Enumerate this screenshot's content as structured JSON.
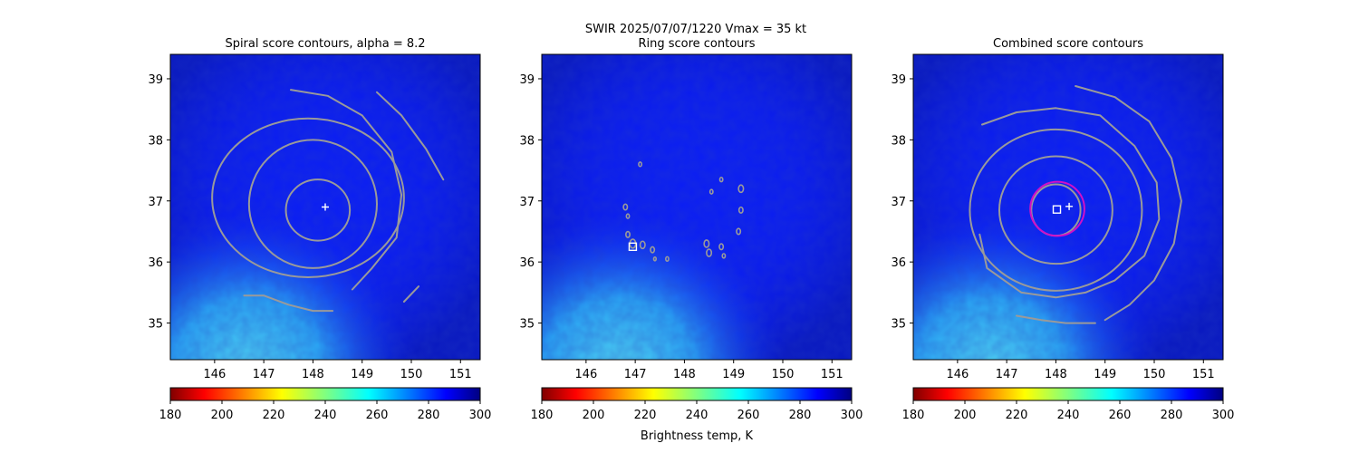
{
  "figure": {
    "suptitle_line1": "SWIR  2025/07/07/1220    Vmax = 35 kt",
    "colorbar_label": "Brightness temp, K"
  },
  "colors": {
    "contour": "#9a9a9a",
    "marker": "#ffffff",
    "ring": "#d010c8",
    "background_cold": "#0a1cf5",
    "background_warm": "#2fb8f0"
  },
  "chart_data": [
    {
      "type": "heatmap",
      "title": "Spiral score contours, alpha =  8.2",
      "xlim": [
        145.1,
        151.4
      ],
      "ylim": [
        34.4,
        39.4
      ],
      "xticks": [
        146,
        147,
        148,
        149,
        150,
        151
      ],
      "yticks": [
        35,
        36,
        37,
        38,
        39
      ],
      "colorbar": {
        "min": 180,
        "max": 300,
        "ticks": [
          180,
          200,
          220,
          240,
          260,
          280,
          300
        ],
        "colormap": "jet_r"
      },
      "marker": {
        "kind": "plus",
        "x": 148.25,
        "y": 36.9
      },
      "contours": [
        {
          "kind": "ellipse",
          "cx": 148.1,
          "cy": 36.85,
          "rx": 0.65,
          "ry": 0.5
        },
        {
          "kind": "ellipse",
          "cx": 148.0,
          "cy": 36.95,
          "rx": 1.3,
          "ry": 1.05
        },
        {
          "kind": "ellipse",
          "cx": 147.9,
          "cy": 37.05,
          "rx": 1.95,
          "ry": 1.3
        },
        {
          "kind": "path",
          "points": [
            [
              147.55,
              38.82
            ],
            [
              148.3,
              38.72
            ],
            [
              149.0,
              38.4
            ],
            [
              149.6,
              37.8
            ],
            [
              149.8,
              37.1
            ],
            [
              149.7,
              36.4
            ],
            [
              149.2,
              35.9
            ],
            [
              148.8,
              35.55
            ]
          ]
        },
        {
          "kind": "path",
          "points": [
            [
              149.3,
              38.78
            ],
            [
              149.8,
              38.4
            ],
            [
              150.3,
              37.85
            ],
            [
              150.65,
              37.35
            ]
          ]
        },
        {
          "kind": "path",
          "points": [
            [
              146.6,
              35.45
            ],
            [
              147.0,
              35.45
            ],
            [
              147.5,
              35.3
            ],
            [
              148.0,
              35.2
            ],
            [
              148.4,
              35.2
            ]
          ]
        },
        {
          "kind": "path",
          "points": [
            [
              149.85,
              35.35
            ],
            [
              150.15,
              35.6
            ]
          ]
        }
      ]
    },
    {
      "type": "heatmap",
      "title": "Ring score contours",
      "xlim": [
        145.1,
        151.4
      ],
      "ylim": [
        34.4,
        39.4
      ],
      "xticks": [
        146,
        147,
        148,
        149,
        150,
        151
      ],
      "yticks": [
        35,
        36,
        37,
        38,
        39
      ],
      "colorbar": {
        "min": 180,
        "max": 300,
        "ticks": [
          180,
          200,
          220,
          240,
          260,
          280,
          300
        ],
        "colormap": "jet_r"
      },
      "marker": {
        "kind": "square",
        "x": 146.95,
        "y": 36.25
      },
      "contours": [
        {
          "kind": "blob",
          "cx": 146.95,
          "cy": 36.3,
          "r": 0.06
        },
        {
          "kind": "blob",
          "cx": 146.85,
          "cy": 36.45,
          "r": 0.04
        },
        {
          "kind": "blob",
          "cx": 147.15,
          "cy": 36.28,
          "r": 0.05
        },
        {
          "kind": "blob",
          "cx": 147.35,
          "cy": 36.2,
          "r": 0.04
        },
        {
          "kind": "blob",
          "cx": 146.8,
          "cy": 36.9,
          "r": 0.04
        },
        {
          "kind": "blob",
          "cx": 146.85,
          "cy": 36.75,
          "r": 0.03
        },
        {
          "kind": "blob",
          "cx": 147.1,
          "cy": 37.6,
          "r": 0.03
        },
        {
          "kind": "blob",
          "cx": 148.45,
          "cy": 36.3,
          "r": 0.05
        },
        {
          "kind": "blob",
          "cx": 148.5,
          "cy": 36.15,
          "r": 0.05
        },
        {
          "kind": "blob",
          "cx": 148.75,
          "cy": 36.25,
          "r": 0.04
        },
        {
          "kind": "blob",
          "cx": 148.8,
          "cy": 36.1,
          "r": 0.03
        },
        {
          "kind": "blob",
          "cx": 149.1,
          "cy": 36.5,
          "r": 0.04
        },
        {
          "kind": "blob",
          "cx": 149.15,
          "cy": 36.85,
          "r": 0.04
        },
        {
          "kind": "blob",
          "cx": 149.15,
          "cy": 37.2,
          "r": 0.05
        },
        {
          "kind": "blob",
          "cx": 148.75,
          "cy": 37.35,
          "r": 0.03
        },
        {
          "kind": "blob",
          "cx": 148.55,
          "cy": 37.15,
          "r": 0.03
        },
        {
          "kind": "blob",
          "cx": 147.65,
          "cy": 36.05,
          "r": 0.03
        },
        {
          "kind": "blob",
          "cx": 147.4,
          "cy": 36.05,
          "r": 0.025
        }
      ]
    },
    {
      "type": "heatmap",
      "title": "Combined score contours",
      "xlim": [
        145.1,
        151.4
      ],
      "ylim": [
        34.4,
        39.4
      ],
      "xticks": [
        146,
        147,
        148,
        149,
        150,
        151
      ],
      "yticks": [
        35,
        36,
        37,
        38,
        39
      ],
      "colorbar": {
        "min": 180,
        "max": 300,
        "ticks": [
          180,
          200,
          220,
          240,
          260,
          280,
          300
        ],
        "colormap": "jet_r"
      },
      "marker": {
        "kind": "plus",
        "x": 148.27,
        "y": 36.91
      },
      "marker2": {
        "kind": "square",
        "x": 148.02,
        "y": 36.86
      },
      "ring": {
        "cx": 148.03,
        "cy": 36.87,
        "r": 0.55
      },
      "contours": [
        {
          "kind": "ellipse",
          "cx": 148.0,
          "cy": 36.85,
          "rx": 0.5,
          "ry": 0.42
        },
        {
          "kind": "ellipse",
          "cx": 148.0,
          "cy": 36.85,
          "rx": 1.15,
          "ry": 0.88
        },
        {
          "kind": "ellipse",
          "cx": 148.0,
          "cy": 36.85,
          "rx": 1.75,
          "ry": 1.32
        },
        {
          "kind": "path",
          "points": [
            [
              146.5,
              38.25
            ],
            [
              147.2,
              38.45
            ],
            [
              148.0,
              38.52
            ],
            [
              148.9,
              38.4
            ],
            [
              149.6,
              37.9
            ],
            [
              150.05,
              37.3
            ],
            [
              150.1,
              36.7
            ],
            [
              149.8,
              36.1
            ],
            [
              149.2,
              35.7
            ],
            [
              148.6,
              35.5
            ],
            [
              148.0,
              35.42
            ],
            [
              147.3,
              35.5
            ],
            [
              146.6,
              35.9
            ],
            [
              146.45,
              36.45
            ]
          ]
        },
        {
          "kind": "path",
          "points": [
            [
              148.4,
              38.88
            ],
            [
              149.2,
              38.7
            ],
            [
              149.9,
              38.3
            ],
            [
              150.35,
              37.7
            ],
            [
              150.55,
              37.0
            ],
            [
              150.4,
              36.3
            ],
            [
              150.0,
              35.7
            ],
            [
              149.5,
              35.3
            ],
            [
              149.0,
              35.05
            ]
          ]
        },
        {
          "kind": "path",
          "points": [
            [
              147.2,
              35.12
            ],
            [
              147.7,
              35.05
            ],
            [
              148.2,
              35.0
            ],
            [
              148.8,
              35.0
            ]
          ]
        }
      ]
    }
  ]
}
